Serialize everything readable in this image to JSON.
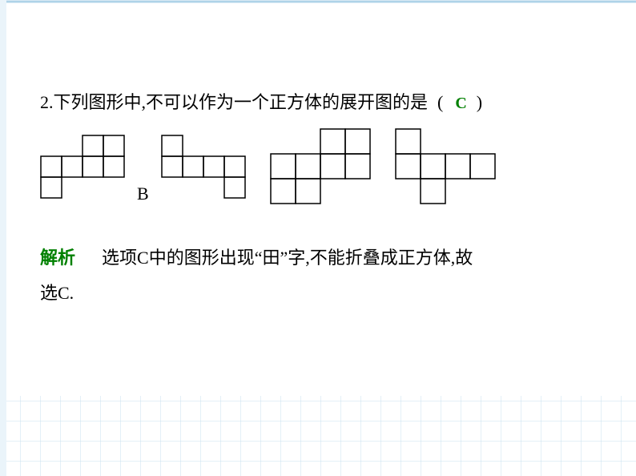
{
  "background": {
    "main_color": "#ffffff",
    "border_color": "#afd3e8",
    "grid_line_color": "#c8e0ef",
    "grid_spacing": 25,
    "bottom_grid_height": 100
  },
  "question": {
    "number": "2.",
    "text": "下列图形中,不可以作为一个正方体的展开图的是",
    "paren_open": "(",
    "paren_close": ")",
    "answer": "C",
    "answer_color": "#008000"
  },
  "label_b": "B",
  "explanation": {
    "label": "解析",
    "label_color": "#008000",
    "text_line1": "选项C中的图形出现“田”字,不能折叠成正方体,故",
    "text_line2": "选C."
  },
  "figures": {
    "cell_size": 26,
    "stroke_color": "#000000",
    "stroke_width": 1.5,
    "figure_a": {
      "cells": [
        [
          2,
          0
        ],
        [
          3,
          0
        ],
        [
          0,
          1
        ],
        [
          1,
          1
        ],
        [
          2,
          1
        ],
        [
          3,
          1
        ],
        [
          0,
          2
        ]
      ],
      "width": 4,
      "height": 3
    },
    "figure_b": {
      "cells": [
        [
          0,
          0
        ],
        [
          0,
          1
        ],
        [
          1,
          1
        ],
        [
          2,
          1
        ],
        [
          3,
          1
        ],
        [
          3,
          2
        ]
      ],
      "width": 4,
      "height": 3
    },
    "figure_c": {
      "cells": [
        [
          2,
          0
        ],
        [
          3,
          0
        ],
        [
          0,
          1
        ],
        [
          1,
          1
        ],
        [
          2,
          1
        ],
        [
          3,
          1
        ],
        [
          0,
          2
        ],
        [
          1,
          2
        ]
      ],
      "width": 4,
      "height": 3
    },
    "figure_d": {
      "cells": [
        [
          0,
          0
        ],
        [
          0,
          1
        ],
        [
          1,
          1
        ],
        [
          2,
          1
        ],
        [
          3,
          1
        ],
        [
          1,
          2
        ]
      ],
      "width": 4,
      "height": 3
    }
  }
}
